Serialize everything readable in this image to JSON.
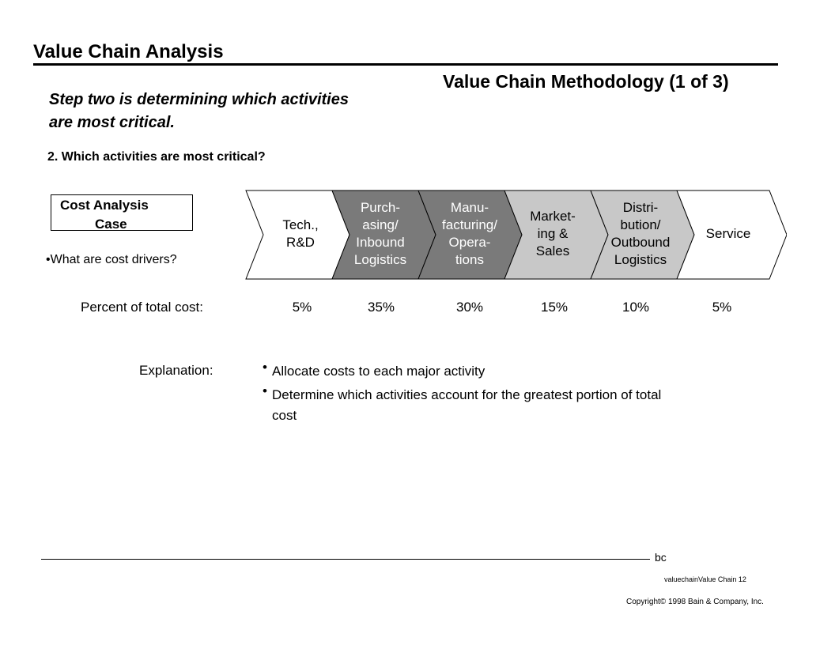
{
  "header": {
    "title": "Value Chain Analysis",
    "subtitle": "Value Chain Methodology (1 of 3)"
  },
  "lead": {
    "line1": "Step two is determining which activities",
    "line2": "are most critical."
  },
  "question": "2.  Which activities are most critical?",
  "case_box": {
    "line1": "Cost Analysis",
    "line2": "Case"
  },
  "drivers": "•What are cost drivers?",
  "chain": {
    "activities": [
      {
        "lines": [
          "Tech.,",
          "R&D"
        ],
        "fill": "#ffffff",
        "text_color": "#000000"
      },
      {
        "lines": [
          "Purch-",
          "asing/",
          "Inbound",
          "Logistics"
        ],
        "fill": "#7a7a7a",
        "text_color": "#ffffff"
      },
      {
        "lines": [
          "Manu-",
          "facturing/",
          "Opera-",
          "tions"
        ],
        "fill": "#7a7a7a",
        "text_color": "#ffffff"
      },
      {
        "lines": [
          "Market-",
          "ing &",
          "Sales"
        ],
        "fill": "#c8c8c8",
        "text_color": "#000000"
      },
      {
        "lines": [
          "Distri-",
          "bution/",
          "Outbound",
          "Logistics"
        ],
        "fill": "#c8c8c8",
        "text_color": "#000000"
      },
      {
        "lines": [
          "Service"
        ],
        "fill": "#ffffff",
        "text_color": "#000000"
      }
    ]
  },
  "costs": {
    "label": "Percent of total cost:",
    "values": [
      "5%",
      "35%",
      "30%",
      "15%",
      "10%",
      "5%"
    ]
  },
  "explanation": {
    "label": "Explanation:",
    "bullets": [
      "Allocate costs to each major activity",
      "Determine which activities account for the greatest portion of total cost"
    ]
  },
  "footer": {
    "mark": "bc",
    "page_ref": "valuechainValue Chain   12",
    "copyright": "Copyright© 1998 Bain & Company, Inc."
  }
}
